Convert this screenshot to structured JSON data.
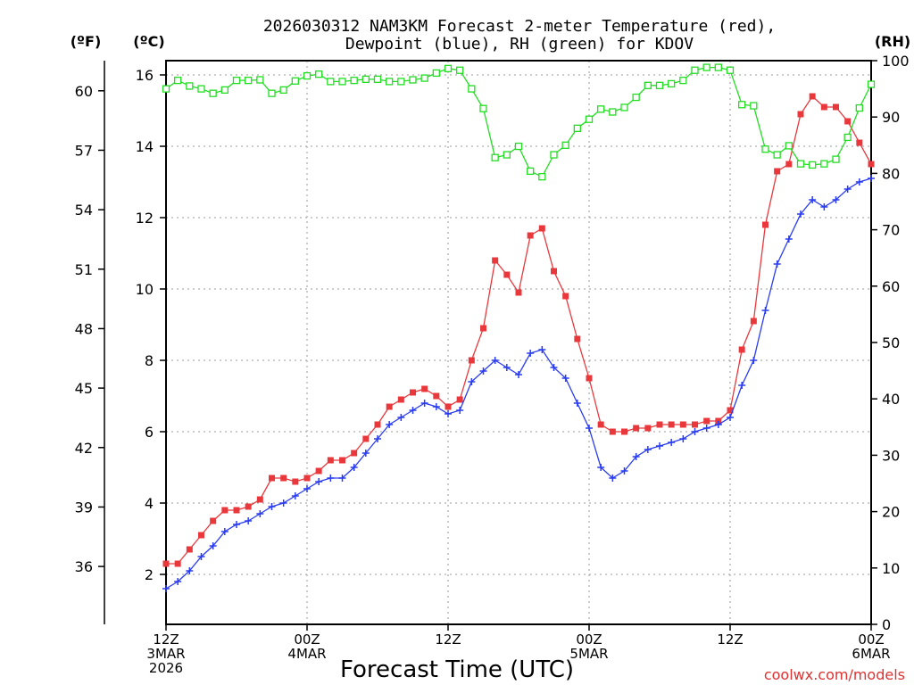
{
  "chart_data": {
    "type": "line",
    "title_line1": "2026030312 NAM3KM Forecast 2-meter Temperature (red),",
    "title_line2": "Dewpoint (blue), RH (green) for KDOV",
    "units": {
      "fahrenheit": "(ºF)",
      "celsius": "(ºC)",
      "rh": "(RH)"
    },
    "xlabel": "Forecast Time (UTC)",
    "credit": "coolwx.com/models",
    "x_range_hours": [
      0,
      60
    ],
    "celsius_range": [
      0.6,
      16.4
    ],
    "rh_range": [
      0,
      100
    ],
    "x_ticks": [
      {
        "hour": 0,
        "lines": [
          "12Z",
          "3MAR",
          "2026"
        ]
      },
      {
        "hour": 12,
        "lines": [
          "00Z",
          "4MAR"
        ]
      },
      {
        "hour": 24,
        "lines": [
          "12Z"
        ]
      },
      {
        "hour": 36,
        "lines": [
          "00Z",
          "5MAR"
        ]
      },
      {
        "hour": 48,
        "lines": [
          "12Z"
        ]
      },
      {
        "hour": 60,
        "lines": [
          "00Z",
          "6MAR"
        ]
      }
    ],
    "celsius_ticks": [
      "2",
      "4",
      "6",
      "8",
      "10",
      "12",
      "14",
      "16"
    ],
    "fahrenheit_ticks": [
      "36",
      "39",
      "42",
      "45",
      "48",
      "51",
      "54",
      "57",
      "60"
    ],
    "rh_ticks": [
      "0",
      "10",
      "20",
      "30",
      "40",
      "50",
      "60",
      "70",
      "80",
      "90",
      "100"
    ],
    "series": [
      {
        "name": "2-meter Temperature",
        "unit": "C",
        "color": "#e8383c",
        "marker": "filled-square",
        "values": [
          2.3,
          2.3,
          2.7,
          3.1,
          3.5,
          3.8,
          3.8,
          3.9,
          4.1,
          4.7,
          4.7,
          4.6,
          4.7,
          4.9,
          5.2,
          5.2,
          5.4,
          5.8,
          6.2,
          6.7,
          6.9,
          7.1,
          7.2,
          7.0,
          6.7,
          6.9,
          8.0,
          8.9,
          10.8,
          10.4,
          9.9,
          11.5,
          11.7,
          10.5,
          9.8,
          8.6,
          7.5,
          6.2,
          6.0,
          6.0,
          6.1,
          6.1,
          6.2,
          6.2,
          6.2,
          6.2,
          6.3,
          6.3,
          6.6,
          8.3,
          9.1,
          11.8,
          13.3,
          13.5,
          14.9,
          15.4,
          15.1,
          15.1,
          14.7,
          14.1,
          13.5
        ]
      },
      {
        "name": "Dewpoint",
        "unit": "C",
        "color": "#2a3cf0",
        "marker": "plus",
        "values": [
          1.6,
          1.8,
          2.1,
          2.5,
          2.8,
          3.2,
          3.4,
          3.5,
          3.7,
          3.9,
          4.0,
          4.2,
          4.4,
          4.6,
          4.7,
          4.7,
          5.0,
          5.4,
          5.8,
          6.2,
          6.4,
          6.6,
          6.8,
          6.7,
          6.5,
          6.6,
          7.4,
          7.7,
          8.0,
          7.8,
          7.6,
          8.2,
          8.3,
          7.8,
          7.5,
          6.8,
          6.1,
          5.0,
          4.7,
          4.9,
          5.3,
          5.5,
          5.6,
          5.7,
          5.8,
          6.0,
          6.1,
          6.2,
          6.4,
          7.3,
          8.0,
          9.4,
          10.7,
          11.4,
          12.1,
          12.5,
          12.3,
          12.5,
          12.8,
          13.0,
          13.1
        ]
      },
      {
        "name": "RH",
        "unit": "%",
        "color": "#22dd22",
        "marker": "open-square",
        "values": [
          95.0,
          96.5,
          95.5,
          95.0,
          94.2,
          94.8,
          96.5,
          96.5,
          96.6,
          94.2,
          94.8,
          96.4,
          97.3,
          97.6,
          96.3,
          96.3,
          96.5,
          96.7,
          96.7,
          96.3,
          96.3,
          96.6,
          96.9,
          97.8,
          98.6,
          98.3,
          95.0,
          91.5,
          82.8,
          83.3,
          84.8,
          80.4,
          79.4,
          83.3,
          85.0,
          88.0,
          89.6,
          91.4,
          90.9,
          91.7,
          93.5,
          95.6,
          95.6,
          95.9,
          96.5,
          98.3,
          98.8,
          98.8,
          98.3,
          92.2,
          92.0,
          84.3,
          83.3,
          84.9,
          81.7,
          81.5,
          81.7,
          82.5,
          86.4,
          91.6,
          95.8
        ]
      }
    ]
  }
}
